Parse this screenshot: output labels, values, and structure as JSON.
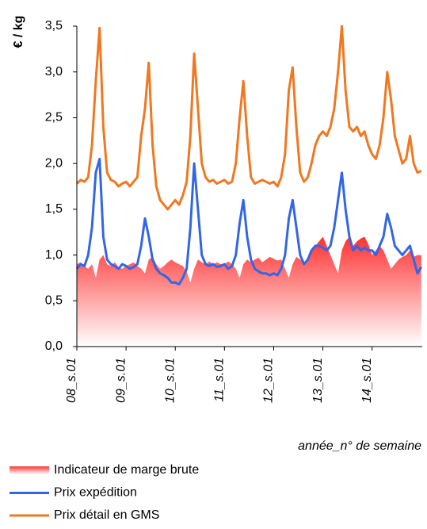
{
  "chart_data": {
    "type": "line",
    "y_label": "€ / kg",
    "x_label": "année_n° de semaine",
    "xlim": [
      0,
      365
    ],
    "xticks": [
      {
        "value": 0,
        "label": "08_s.01"
      },
      {
        "value": 52,
        "label": "09_s.01"
      },
      {
        "value": 104,
        "label": "10_s.01"
      },
      {
        "value": 156,
        "label": "11_s.01"
      },
      {
        "value": 208,
        "label": "12_s.01"
      },
      {
        "value": 260,
        "label": "13_s.01"
      },
      {
        "value": 312,
        "label": "14_s.01"
      }
    ],
    "ylim": [
      0,
      3.5
    ],
    "yticks": [
      {
        "value": 0,
        "label": "0,0"
      },
      {
        "value": 0.5,
        "label": "0,5"
      },
      {
        "value": 1,
        "label": "1,0"
      },
      {
        "value": 1.5,
        "label": "1,5"
      },
      {
        "value": 2,
        "label": "2,0"
      },
      {
        "value": 2.5,
        "label": "2,5"
      },
      {
        "value": 3,
        "label": "3,0"
      },
      {
        "value": 3.5,
        "label": "3,5"
      }
    ],
    "x": [
      0,
      4,
      8,
      12,
      16,
      20,
      24,
      28,
      32,
      36,
      40,
      44,
      48,
      52,
      56,
      60,
      64,
      68,
      72,
      76,
      80,
      84,
      88,
      92,
      96,
      100,
      104,
      108,
      112,
      116,
      120,
      124,
      128,
      132,
      136,
      140,
      144,
      148,
      152,
      156,
      160,
      164,
      168,
      172,
      176,
      180,
      184,
      188,
      192,
      196,
      200,
      204,
      208,
      212,
      216,
      220,
      224,
      228,
      232,
      236,
      240,
      244,
      248,
      252,
      256,
      260,
      264,
      268,
      272,
      276,
      280,
      284,
      288,
      292,
      296,
      300,
      304,
      308,
      312,
      316,
      320,
      324,
      328,
      332,
      336,
      340,
      344,
      348,
      352,
      356,
      360,
      364
    ],
    "series": [
      {
        "name": "Indicateur de marge brute",
        "style": "area",
        "color": "#ff3333",
        "values": [
          0.9,
          0.92,
          0.88,
          0.85,
          0.9,
          0.75,
          0.95,
          1.0,
          0.9,
          0.88,
          0.92,
          0.87,
          0.85,
          0.88,
          0.9,
          0.92,
          0.88,
          0.85,
          0.8,
          0.95,
          0.98,
          0.9,
          0.85,
          0.88,
          0.92,
          0.95,
          0.92,
          0.9,
          0.88,
          0.82,
          0.7,
          0.85,
          0.95,
          0.92,
          0.9,
          0.93,
          0.9,
          0.92,
          0.9,
          0.9,
          0.93,
          0.9,
          0.85,
          0.75,
          0.9,
          0.95,
          0.92,
          0.95,
          0.97,
          0.92,
          0.95,
          0.98,
          0.96,
          0.94,
          0.95,
          0.85,
          0.75,
          0.9,
          0.98,
          0.95,
          0.92,
          0.95,
          1.05,
          1.1,
          1.15,
          1.2,
          1.1,
          1.0,
          0.9,
          0.8,
          1.05,
          1.15,
          1.2,
          1.1,
          1.15,
          1.18,
          1.2,
          1.12,
          1.0,
          1.05,
          1.1,
          1.05,
          0.95,
          0.85,
          0.9,
          0.95,
          0.98,
          1.0,
          1.05,
          0.98,
          1.0,
          1.0
        ]
      },
      {
        "name": "Prix expédition",
        "style": "line",
        "color": "#3366e6",
        "values": [
          0.85,
          0.9,
          0.88,
          1.0,
          1.3,
          1.9,
          2.05,
          1.2,
          0.95,
          0.9,
          0.88,
          0.85,
          0.9,
          0.88,
          0.85,
          0.87,
          0.9,
          1.1,
          1.4,
          1.2,
          0.95,
          0.85,
          0.8,
          0.78,
          0.75,
          0.7,
          0.7,
          0.68,
          0.75,
          0.85,
          1.3,
          2.0,
          1.5,
          1.0,
          0.9,
          0.88,
          0.9,
          0.87,
          0.88,
          0.9,
          0.85,
          0.88,
          1.0,
          1.35,
          1.6,
          1.2,
          0.95,
          0.85,
          0.82,
          0.8,
          0.8,
          0.78,
          0.8,
          0.78,
          0.85,
          1.0,
          1.4,
          1.6,
          1.3,
          1.0,
          0.9,
          0.95,
          1.05,
          1.1,
          1.1,
          1.08,
          1.05,
          1.1,
          1.3,
          1.6,
          1.9,
          1.5,
          1.2,
          1.05,
          1.1,
          1.05,
          1.08,
          1.05,
          1.05,
          1.0,
          1.1,
          1.2,
          1.45,
          1.3,
          1.1,
          1.05,
          1.0,
          1.05,
          1.1,
          0.95,
          0.8,
          0.87
        ]
      },
      {
        "name": "Prix détail en GMS",
        "style": "line",
        "color": "#f07820",
        "values": [
          1.78,
          1.82,
          1.8,
          1.85,
          2.2,
          2.9,
          3.48,
          2.4,
          1.9,
          1.82,
          1.8,
          1.75,
          1.78,
          1.8,
          1.75,
          1.8,
          1.85,
          2.3,
          2.6,
          3.1,
          2.2,
          1.75,
          1.6,
          1.55,
          1.5,
          1.55,
          1.6,
          1.55,
          1.65,
          1.8,
          2.3,
          3.2,
          2.6,
          2.0,
          1.85,
          1.8,
          1.82,
          1.78,
          1.8,
          1.82,
          1.78,
          1.8,
          2.0,
          2.5,
          2.9,
          2.3,
          1.85,
          1.78,
          1.8,
          1.82,
          1.8,
          1.78,
          1.8,
          1.75,
          1.85,
          2.1,
          2.8,
          3.05,
          2.4,
          1.9,
          1.8,
          1.85,
          2.0,
          2.2,
          2.3,
          2.35,
          2.3,
          2.4,
          2.6,
          3.0,
          3.5,
          2.8,
          2.4,
          2.35,
          2.4,
          2.3,
          2.35,
          2.2,
          2.1,
          2.05,
          2.2,
          2.5,
          3.0,
          2.7,
          2.3,
          2.15,
          2.0,
          2.05,
          2.3,
          2.0,
          1.9,
          1.92
        ]
      }
    ]
  }
}
